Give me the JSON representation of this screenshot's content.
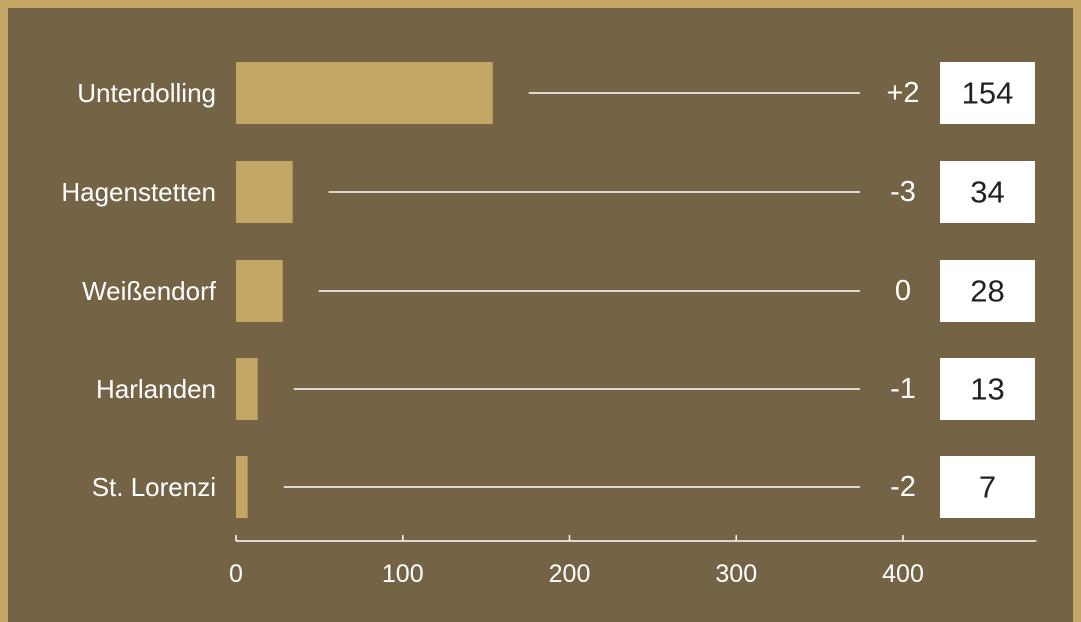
{
  "colors": {
    "outer_frame": "#c4a665",
    "panel_background": "#756346",
    "bar": "#c4a665",
    "text": "#ffffff",
    "value_box": "#ffffff",
    "value_box_text": "#222222"
  },
  "chart_data": {
    "type": "bar",
    "orientation": "horizontal",
    "title": "",
    "xlabel": "",
    "ylabel": "",
    "categories": [
      "Unterdolling",
      "Hagenstetten",
      "Weißendorf",
      "Harlanden",
      "St. Lorenzi"
    ],
    "values": [
      154,
      34,
      28,
      13,
      7
    ],
    "changes": [
      "+2",
      "-3",
      "0",
      "-1",
      "-2"
    ],
    "value_labels": [
      "154",
      "34",
      "28",
      "13",
      "7"
    ],
    "xlim": [
      0,
      480
    ],
    "xticks": [
      "0",
      "100",
      "200",
      "300",
      "400"
    ],
    "grid": false,
    "legend": "none"
  }
}
